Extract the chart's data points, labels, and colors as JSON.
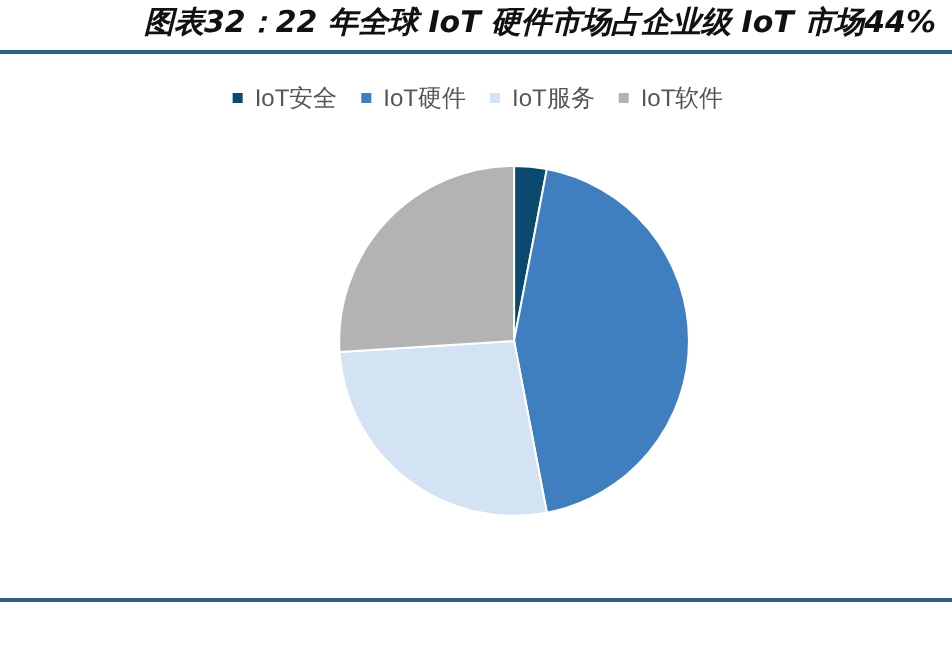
{
  "chart_data": {
    "type": "pie",
    "title": "图表32：22 年全球 IoT 硬件市场占企业级 IoT 市场44%",
    "categories": [
      "IoT安全",
      "IoT硬件",
      "IoT服务",
      "IoT软件"
    ],
    "values": [
      3,
      44,
      27,
      26
    ],
    "colors": [
      "#0b4a6e",
      "#3f7fbf",
      "#d3e3f3",
      "#b3b3b3"
    ],
    "legend": "top"
  }
}
